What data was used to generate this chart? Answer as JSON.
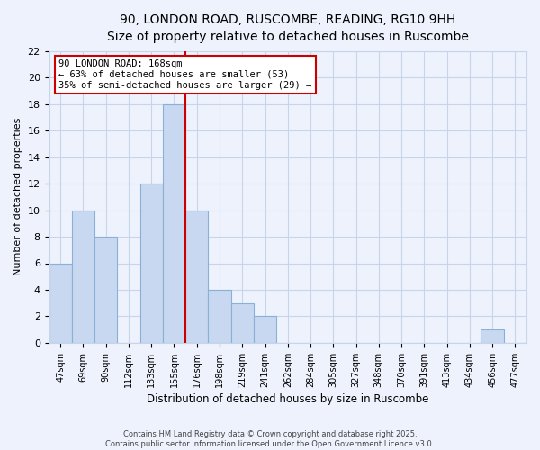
{
  "title1": "90, LONDON ROAD, RUSCOMBE, READING, RG10 9HH",
  "title2": "Size of property relative to detached houses in Ruscombe",
  "xlabel": "Distribution of detached houses by size in Ruscombe",
  "ylabel": "Number of detached properties",
  "bar_labels": [
    "47sqm",
    "69sqm",
    "90sqm",
    "112sqm",
    "133sqm",
    "155sqm",
    "176sqm",
    "198sqm",
    "219sqm",
    "241sqm",
    "262sqm",
    "284sqm",
    "305sqm",
    "327sqm",
    "348sqm",
    "370sqm",
    "391sqm",
    "413sqm",
    "434sqm",
    "456sqm",
    "477sqm"
  ],
  "bar_values": [
    6,
    10,
    8,
    0,
    12,
    18,
    10,
    4,
    3,
    2,
    0,
    0,
    0,
    0,
    0,
    0,
    0,
    0,
    0,
    1,
    0
  ],
  "bar_color": "#c8d8f0",
  "bar_edge_color": "#8ab0d8",
  "vline_x_idx": 6,
  "vline_color": "#cc0000",
  "annotation_text": "90 LONDON ROAD: 168sqm\n← 63% of detached houses are smaller (53)\n35% of semi-detached houses are larger (29) →",
  "annotation_box_color": "#ffffff",
  "annotation_box_edge": "#cc0000",
  "ylim": [
    0,
    22
  ],
  "yticks": [
    0,
    2,
    4,
    6,
    8,
    10,
    12,
    14,
    16,
    18,
    20,
    22
  ],
  "grid_color": "#c8d4ec",
  "background_color": "#eef2fc",
  "footer_line1": "Contains HM Land Registry data © Crown copyright and database right 2025.",
  "footer_line2": "Contains public sector information licensed under the Open Government Licence v3.0.",
  "title_fontsize": 10.5,
  "subtitle_fontsize": 9.5
}
